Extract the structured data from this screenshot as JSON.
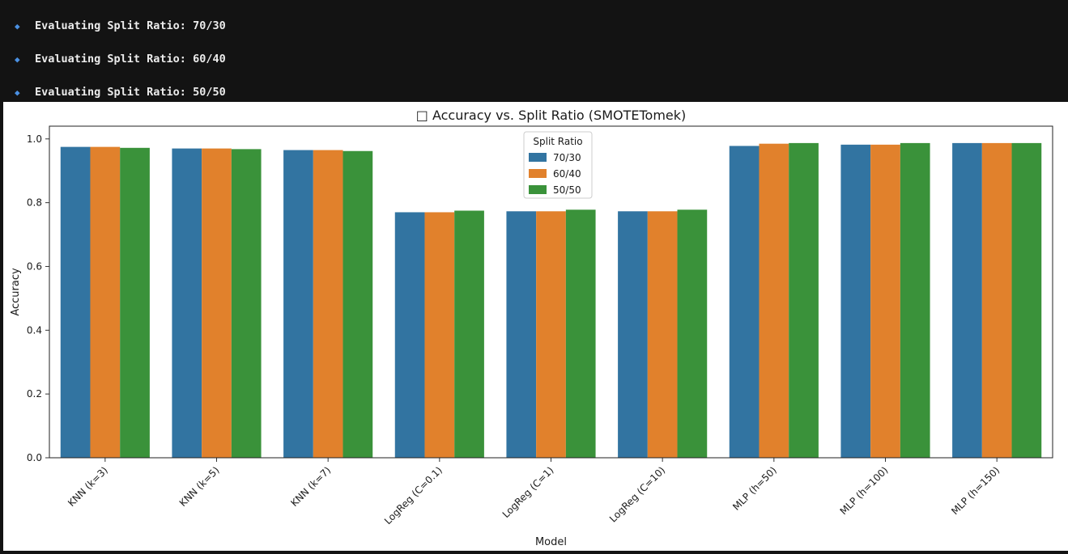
{
  "console": {
    "lines": [
      {
        "bullet": "◆",
        "text": "Evaluating Split Ratio: 70/30"
      },
      {
        "bullet": "◆",
        "text": "Evaluating Split Ratio: 60/40"
      },
      {
        "bullet": "◆",
        "text": "Evaluating Split Ratio: 50/50"
      }
    ]
  },
  "chart_data": {
    "type": "bar",
    "title": "□ Accuracy vs. Split Ratio (SMOTETomek)",
    "xlabel": "Model",
    "ylabel": "Accuracy",
    "ylim": [
      0,
      1.04
    ],
    "yticks": [
      "0.0",
      "0.2",
      "0.4",
      "0.6",
      "0.8",
      "1.0"
    ],
    "ytick_values": [
      0,
      0.2,
      0.4,
      0.6,
      0.8,
      1.0
    ],
    "grid": false,
    "legend": {
      "title": "Split Ratio",
      "placement": "top-center"
    },
    "categories": [
      "KNN (k=3)",
      "KNN (k=5)",
      "KNN (k=7)",
      "LogReg (C=0.1)",
      "LogReg (C=1)",
      "LogReg (C=10)",
      "MLP (h=50)",
      "MLP (h=100)",
      "MLP (h=150)"
    ],
    "series": [
      {
        "name": "70/30",
        "color": "#3274a1",
        "values": [
          0.975,
          0.97,
          0.965,
          0.77,
          0.773,
          0.773,
          0.978,
          0.982,
          0.987
        ]
      },
      {
        "name": "60/40",
        "color": "#e1812c",
        "values": [
          0.975,
          0.97,
          0.965,
          0.77,
          0.773,
          0.773,
          0.985,
          0.982,
          0.987
        ]
      },
      {
        "name": "50/50",
        "color": "#3a923a",
        "values": [
          0.972,
          0.968,
          0.962,
          0.775,
          0.778,
          0.778,
          0.987,
          0.987,
          0.987
        ]
      }
    ]
  }
}
